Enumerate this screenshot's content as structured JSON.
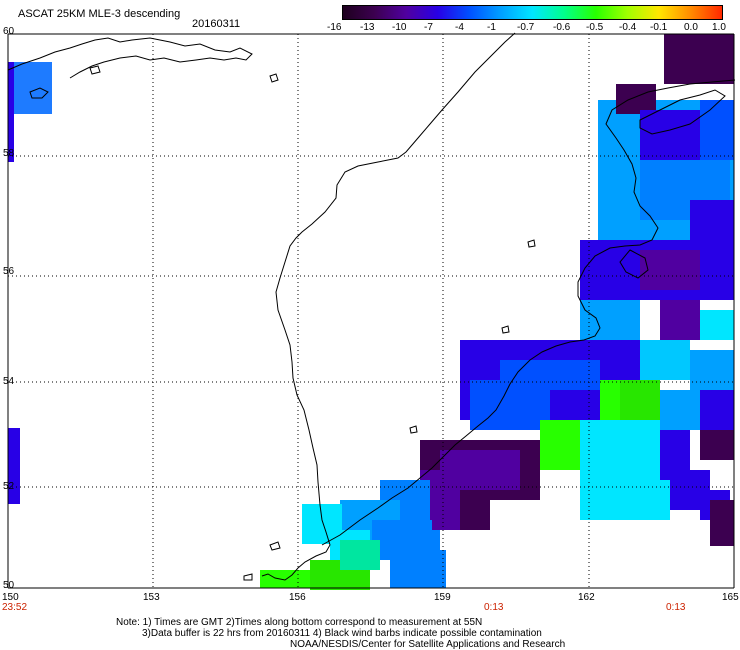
{
  "header": {
    "title": "ASCAT 25KM MLE-3 descending",
    "date": "20160311"
  },
  "colorbar": {
    "labels": [
      "-16",
      "-13",
      "-10",
      "-7",
      "-4",
      "-1",
      "-0.7",
      "-0.6",
      "-0.5",
      "-0.4",
      "-0.1",
      "0.0",
      "1.0"
    ],
    "colors": [
      "#1e001e",
      "#3c0050",
      "#5000a0",
      "#2800e6",
      "#0050ff",
      "#00a0ff",
      "#00e6ff",
      "#00ff8c",
      "#28ff00",
      "#a0ff00",
      "#ffe600",
      "#ff8c00",
      "#ff2800"
    ]
  },
  "map": {
    "lon_range": [
      150,
      165
    ],
    "lat_range": [
      50,
      60
    ],
    "lon_ticks": [
      "150",
      "153",
      "156",
      "159",
      "162",
      "165"
    ],
    "lat_ticks": [
      "60",
      "58",
      "56",
      "54",
      "52",
      "50"
    ],
    "grid": "dotted"
  },
  "times": {
    "left": "23:52",
    "mid": "0:13",
    "right": "0:13"
  },
  "notes": {
    "line1": "Note: 1) Times are GMT 2)Times along bottom correspond to measurement at 55N",
    "line2": "3)Data buffer is 22 hrs from 20160311 4) Black wind barbs indicate possible contamination",
    "line3": "NOAA/NESDIS/Center for Satellite Applications and Research"
  }
}
